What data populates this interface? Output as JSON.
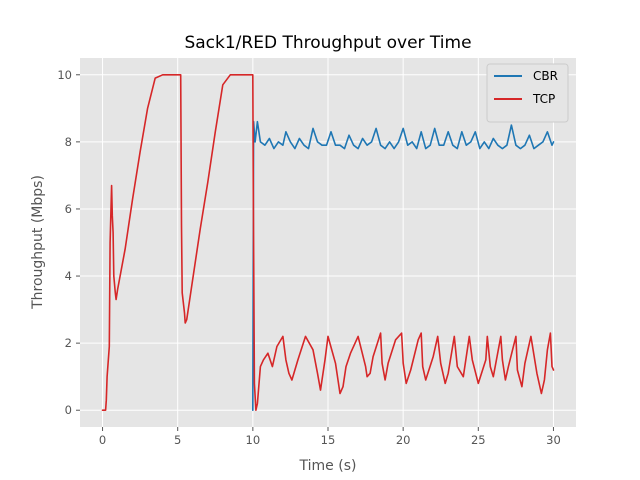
{
  "chart_data": {
    "type": "line",
    "title": "Sack1/RED Throughput over Time",
    "xlabel": "Time (s)",
    "ylabel": "Throughput (Mbps)",
    "xlim": [
      -1.5,
      31.5
    ],
    "ylim": [
      -0.5,
      10.5
    ],
    "xticks": [
      0,
      5,
      10,
      15,
      20,
      25,
      30
    ],
    "yticks": [
      0,
      2,
      4,
      6,
      8,
      10
    ],
    "grid": true,
    "legend": "top-right",
    "series": [
      {
        "name": "CBR",
        "color": "#1f77b4",
        "x": [
          10.0,
          10.05,
          10.15,
          10.3,
          10.5,
          10.8,
          11.1,
          11.4,
          11.7,
          12.0,
          12.2,
          12.5,
          12.8,
          13.1,
          13.4,
          13.7,
          14.0,
          14.3,
          14.6,
          14.9,
          15.2,
          15.5,
          15.8,
          16.1,
          16.4,
          16.7,
          17.0,
          17.3,
          17.6,
          17.9,
          18.2,
          18.5,
          18.8,
          19.1,
          19.4,
          19.7,
          20.0,
          20.3,
          20.6,
          20.9,
          21.2,
          21.5,
          21.8,
          22.1,
          22.4,
          22.7,
          23.0,
          23.3,
          23.6,
          23.9,
          24.2,
          24.5,
          24.8,
          25.1,
          25.4,
          25.7,
          26.0,
          26.3,
          26.6,
          26.9,
          27.2,
          27.5,
          27.8,
          28.1,
          28.4,
          28.7,
          29.0,
          29.3,
          29.6,
          29.9,
          30.0
        ],
        "y": [
          0.0,
          8.6,
          8.0,
          8.6,
          8.0,
          7.9,
          8.1,
          7.8,
          8.0,
          7.9,
          8.3,
          8.0,
          7.8,
          8.1,
          7.9,
          7.8,
          8.4,
          8.0,
          7.9,
          7.9,
          8.3,
          7.9,
          7.9,
          7.8,
          8.2,
          7.9,
          7.8,
          8.1,
          7.9,
          8.0,
          8.4,
          7.9,
          7.8,
          8.0,
          7.8,
          8.0,
          8.4,
          7.9,
          8.0,
          7.8,
          8.3,
          7.8,
          7.9,
          8.4,
          7.9,
          7.9,
          8.3,
          7.9,
          7.8,
          8.3,
          7.9,
          8.0,
          8.3,
          7.8,
          8.0,
          7.8,
          8.1,
          7.9,
          7.8,
          7.9,
          8.5,
          7.9,
          7.8,
          7.9,
          8.2,
          7.8,
          7.9,
          8.0,
          8.3,
          7.9,
          8.0
        ]
      },
      {
        "name": "TCP",
        "color": "#d62728",
        "x": [
          0.0,
          0.2,
          0.25,
          0.3,
          0.45,
          0.5,
          0.6,
          0.65,
          0.7,
          0.75,
          0.85,
          0.9,
          1.0,
          1.5,
          2.0,
          2.5,
          3.0,
          3.5,
          4.0,
          4.2,
          4.5,
          5.0,
          5.2,
          5.25,
          5.3,
          5.45,
          5.5,
          5.6,
          6.0,
          6.5,
          7.0,
          7.5,
          8.0,
          8.5,
          9.0,
          9.2,
          9.5,
          10.0,
          10.03,
          10.1,
          10.2,
          10.3,
          10.5,
          10.7,
          11.0,
          11.3,
          11.6,
          12.0,
          12.2,
          12.4,
          12.6,
          13.0,
          13.5,
          14.0,
          14.3,
          14.5,
          14.8,
          15.0,
          15.5,
          15.8,
          16.0,
          16.2,
          16.5,
          17.0,
          17.5,
          17.6,
          17.8,
          18.0,
          18.5,
          18.6,
          18.8,
          19.0,
          19.5,
          19.9,
          20.0,
          20.2,
          20.5,
          21.0,
          21.2,
          21.3,
          21.5,
          22.0,
          22.3,
          22.5,
          22.8,
          23.0,
          23.4,
          23.6,
          24.0,
          24.4,
          24.6,
          25.0,
          25.5,
          25.6,
          25.8,
          26.0,
          26.5,
          26.6,
          26.8,
          27.0,
          27.5,
          27.6,
          27.9,
          28.1,
          28.5,
          28.9,
          29.2,
          29.4,
          29.6,
          29.8,
          29.9,
          30.0
        ],
        "y": [
          0.0,
          0.0,
          0.3,
          1.0,
          1.9,
          5.0,
          6.7,
          5.8,
          5.3,
          4.0,
          3.5,
          3.3,
          3.6,
          4.8,
          6.3,
          7.7,
          9.0,
          9.9,
          10.0,
          10.0,
          10.0,
          10.0,
          10.0,
          5.5,
          3.5,
          2.9,
          2.6,
          2.7,
          3.9,
          5.4,
          6.8,
          8.3,
          9.7,
          10.0,
          10.0,
          10.0,
          10.0,
          10.0,
          6.5,
          0.8,
          0.0,
          0.2,
          1.3,
          1.5,
          1.7,
          1.3,
          1.9,
          2.2,
          1.5,
          1.1,
          0.9,
          1.5,
          2.2,
          1.8,
          1.1,
          0.6,
          1.5,
          2.2,
          1.4,
          0.5,
          0.7,
          1.3,
          1.7,
          2.2,
          1.3,
          1.0,
          1.1,
          1.6,
          2.3,
          1.4,
          0.9,
          1.4,
          2.1,
          2.3,
          1.4,
          0.8,
          1.2,
          2.1,
          2.3,
          1.3,
          0.9,
          1.6,
          2.2,
          1.4,
          0.8,
          1.1,
          2.2,
          1.3,
          1.0,
          2.2,
          1.5,
          0.8,
          1.5,
          2.2,
          1.3,
          1.0,
          2.2,
          1.5,
          0.9,
          1.3,
          2.2,
          1.2,
          0.7,
          1.4,
          2.2,
          1.1,
          0.5,
          0.9,
          1.8,
          2.3,
          1.3,
          1.2
        ]
      }
    ]
  }
}
